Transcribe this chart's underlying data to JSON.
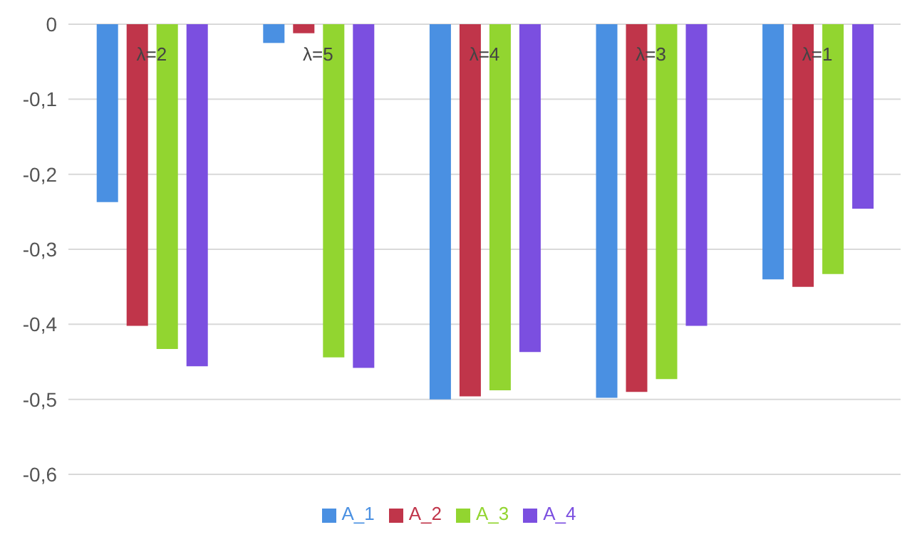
{
  "chart_data": {
    "type": "bar",
    "categories": [
      null,
      null,
      null,
      null,
      null
    ],
    "series": [
      {
        "name": "A_1",
        "color": "#4a90e2",
        "values": [
          -0.237,
          -0.025,
          -0.5,
          -0.498,
          -0.34
        ]
      },
      {
        "name": "A_2",
        "color": "#c0354a",
        "values": [
          -0.402,
          -0.012,
          -0.496,
          -0.49,
          -0.35
        ]
      },
      {
        "name": "A_3",
        "color": "#92d530",
        "values": [
          -0.433,
          -0.444,
          -0.488,
          -0.473,
          -0.333
        ]
      },
      {
        "name": "A_4",
        "color": "#7b4fe0",
        "values": [
          -0.456,
          -0.458,
          -0.437,
          -0.402,
          -0.246
        ]
      }
    ],
    "annotations": [
      {
        "text": "λ=2",
        "y": -0.04
      },
      {
        "text": "λ=5",
        "y": -0.04
      },
      {
        "text": "λ=4",
        "y": -0.04
      },
      {
        "text": "λ=3",
        "y": -0.04
      },
      {
        "text": "λ=1",
        "y": -0.04
      }
    ],
    "ylim": [
      -0.6,
      0
    ],
    "yticks": [
      {
        "value": 0,
        "label": "0"
      },
      {
        "value": -0.1,
        "label": "-0,1"
      },
      {
        "value": -0.2,
        "label": "-0,2"
      },
      {
        "value": -0.3,
        "label": "-0,3"
      },
      {
        "value": -0.4,
        "label": "-0,4"
      },
      {
        "value": -0.5,
        "label": "-0,5"
      },
      {
        "value": -0.6,
        "label": "-0,6"
      }
    ],
    "grid": "y",
    "legend": "bottom"
  }
}
